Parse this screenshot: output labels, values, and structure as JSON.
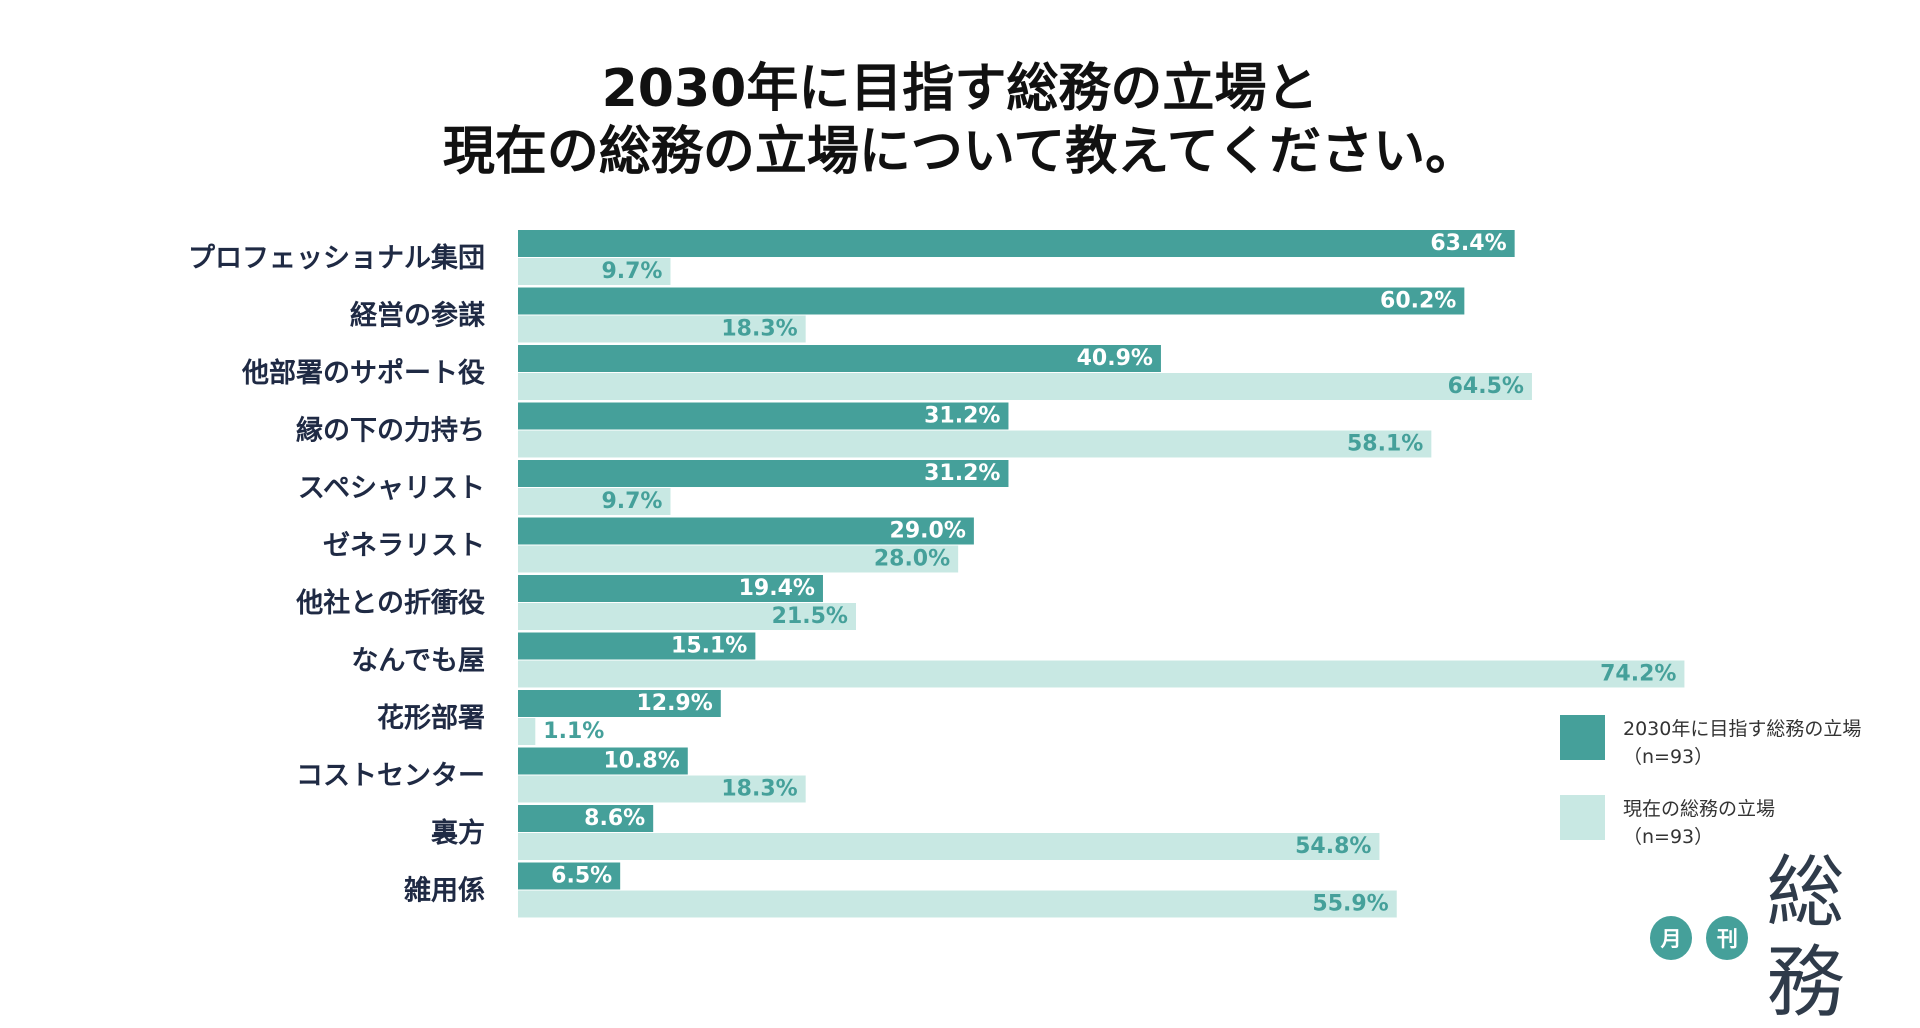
{
  "title": {
    "line1": "2030年に目指す総務の立場と",
    "line2": "現在の総務の立場について教えてください。"
  },
  "colors": {
    "series_a": "#45a09a",
    "series_b": "#c8e8e3"
  },
  "legend": {
    "a_line1": "2030年に目指す総務の立場",
    "a_line2": "（n=93）",
    "b_line1": "現在の総務の立場",
    "b_line2": "（n=93）"
  },
  "brand": {
    "badge1": "月",
    "badge2": "刊",
    "name": "総務"
  },
  "chart_data": {
    "type": "bar",
    "orientation": "horizontal",
    "title": "2030年に目指す総務の立場と現在の総務の立場について教えてください。",
    "categories": [
      "プロフェッショナル集団",
      "経営の参謀",
      "他部署のサポート役",
      "縁の下の力持ち",
      "スペシャリスト",
      "ゼネラリスト",
      "他社との折衝役",
      "なんでも屋",
      "花形部署",
      "コストセンター",
      "裏方",
      "雑用係"
    ],
    "series": [
      {
        "name": "2030年に目指す総務の立場（n=93）",
        "values": [
          63.4,
          60.2,
          40.9,
          31.2,
          31.2,
          29.0,
          19.4,
          15.1,
          12.9,
          10.8,
          8.6,
          6.5
        ],
        "labels": [
          "63.4%",
          "60.2%",
          "40.9%",
          "31.2%",
          "31.2%",
          "29.0%",
          "19.4%",
          "15.1%",
          "12.9%",
          "10.8%",
          "8.6%",
          "6.5%"
        ]
      },
      {
        "name": "現在の総務の立場（n=93）",
        "values": [
          9.7,
          18.3,
          64.5,
          58.1,
          9.7,
          28.0,
          21.5,
          74.2,
          1.1,
          18.3,
          54.8,
          55.9
        ],
        "labels": [
          "9.7%",
          "18.3%",
          "64.5%",
          "58.1%",
          "9.7%",
          "28.0%",
          "21.5%",
          "74.2%",
          "1.1%",
          "18.3%",
          "54.8%",
          "55.9%"
        ]
      }
    ],
    "xlim": [
      0,
      100
    ],
    "unit": "%",
    "grid": false,
    "legend_position": "right"
  }
}
